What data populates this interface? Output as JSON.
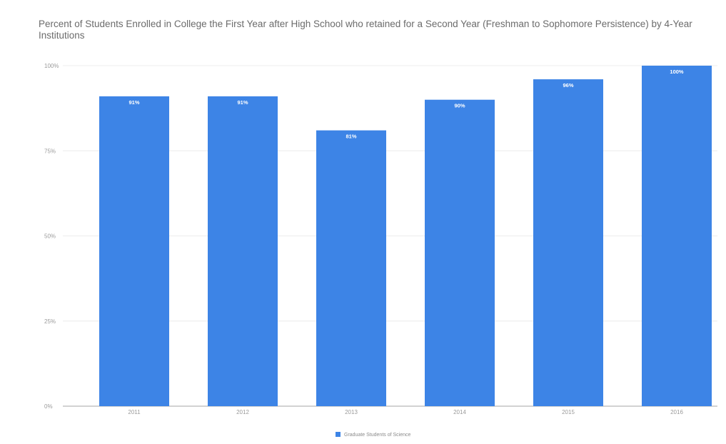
{
  "chart_data": {
    "type": "bar",
    "title": "Percent of Students Enrolled in College the First Year after High School who retained for a Second Year (Freshman to Sophomore Persistence) by 4-Year Institutions",
    "categories": [
      "2011",
      "2012",
      "2013",
      "2014",
      "2015",
      "2016"
    ],
    "series": [
      {
        "name": "Graduate Students of Science",
        "values": [
          91,
          91,
          81,
          90,
          96,
          100
        ],
        "data_labels": [
          "91%",
          "91%",
          "81%",
          "90%",
          "96%",
          "100%"
        ]
      }
    ],
    "xlabel": "",
    "ylabel": "",
    "ylim": [
      0,
      100
    ],
    "y_ticks": [
      0,
      25,
      50,
      75,
      100
    ],
    "y_tick_labels": [
      "0%",
      "25%",
      "50%",
      "75%",
      "100%"
    ],
    "grid": true,
    "legend_position": "bottom",
    "colors": {
      "bar": "#3d84e6",
      "grid": "#ececec",
      "axis": "#b8b8b8"
    }
  }
}
